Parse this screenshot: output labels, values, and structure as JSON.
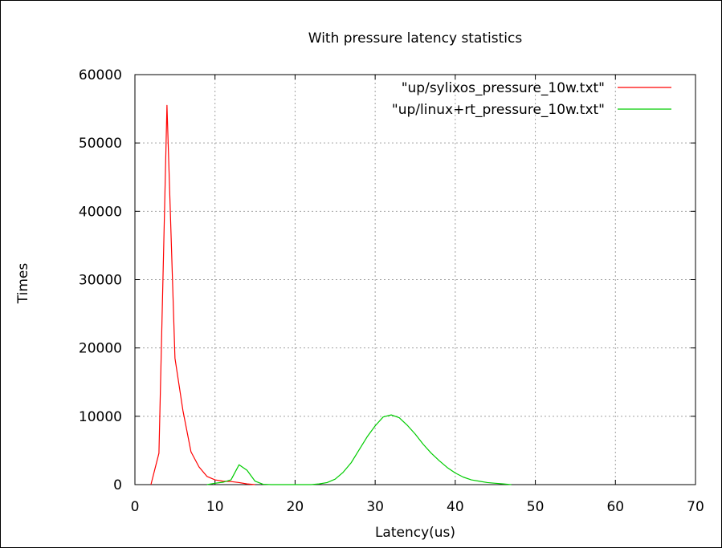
{
  "chart_data": {
    "type": "line",
    "title": "With pressure latency statistics",
    "xlabel": "Latency(us)",
    "ylabel": "Times",
    "xlim": [
      0,
      70
    ],
    "ylim": [
      0,
      60000
    ],
    "xticks": [
      0,
      10,
      20,
      30,
      40,
      50,
      60,
      70
    ],
    "yticks": [
      0,
      10000,
      20000,
      30000,
      40000,
      50000,
      60000
    ],
    "grid": true,
    "legend_position": "top-right",
    "series": [
      {
        "name": "\"up/sylixos_pressure_10w.txt\"",
        "color": "#ff0000",
        "points": [
          [
            2,
            0
          ],
          [
            3,
            4600
          ],
          [
            4,
            55500
          ],
          [
            5,
            18500
          ],
          [
            6,
            10800
          ],
          [
            7,
            4800
          ],
          [
            8,
            2600
          ],
          [
            9,
            1200
          ],
          [
            10,
            700
          ],
          [
            11,
            500
          ],
          [
            12,
            450
          ],
          [
            13,
            300
          ],
          [
            14,
            100
          ],
          [
            15,
            0
          ]
        ]
      },
      {
        "name": "\"up/linux+rt_pressure_10w.txt\"",
        "color": "#00cc00",
        "points": [
          [
            9,
            0
          ],
          [
            10,
            200
          ],
          [
            11,
            350
          ],
          [
            12,
            700
          ],
          [
            13,
            2900
          ],
          [
            14,
            2100
          ],
          [
            15,
            500
          ],
          [
            16,
            50
          ],
          [
            17,
            0
          ],
          [
            22,
            0
          ],
          [
            23,
            100
          ],
          [
            24,
            300
          ],
          [
            25,
            800
          ],
          [
            26,
            1800
          ],
          [
            27,
            3200
          ],
          [
            28,
            5100
          ],
          [
            29,
            7000
          ],
          [
            30,
            8600
          ],
          [
            31,
            9900
          ],
          [
            32,
            10200
          ],
          [
            33,
            9800
          ],
          [
            34,
            8700
          ],
          [
            35,
            7400
          ],
          [
            36,
            5900
          ],
          [
            37,
            4600
          ],
          [
            38,
            3500
          ],
          [
            39,
            2500
          ],
          [
            40,
            1700
          ],
          [
            41,
            1100
          ],
          [
            42,
            700
          ],
          [
            43,
            500
          ],
          [
            44,
            300
          ],
          [
            45,
            200
          ],
          [
            46,
            100
          ],
          [
            47,
            0
          ]
        ]
      }
    ]
  }
}
